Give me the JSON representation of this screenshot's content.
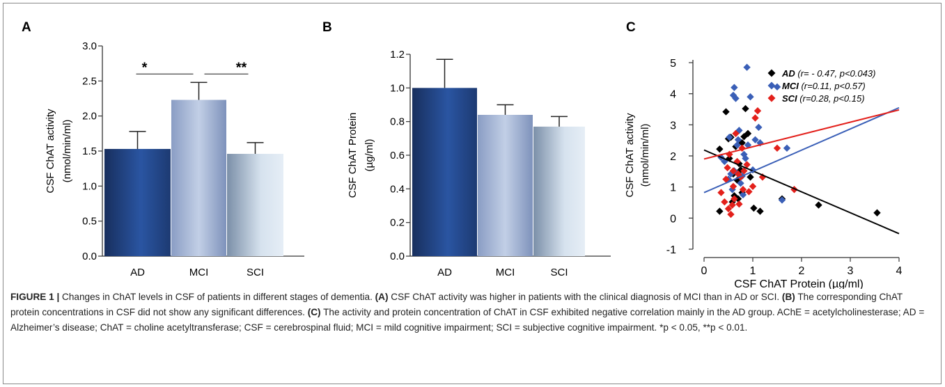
{
  "chart_data": [
    {
      "panel": "A",
      "type": "bar",
      "categories": [
        "AD",
        "MCI",
        "SCI"
      ],
      "values": [
        1.53,
        2.23,
        1.46
      ],
      "errors": [
        0.25,
        0.25,
        0.16
      ],
      "ylabel_lines": [
        "CSF ChAT activity",
        "(nmol/min/ml)"
      ],
      "ylim": [
        0,
        3.0
      ],
      "yticks": [
        "0.0",
        "0.5",
        "1.0",
        "1.5",
        "2.0",
        "2.5",
        "3.0"
      ],
      "significance": [
        {
          "from": "AD",
          "to": "MCI",
          "label": "*"
        },
        {
          "from": "MCI",
          "to": "SCI",
          "label": "**"
        }
      ],
      "colors": {
        "dark": "#1d3a72",
        "mid": "#2c5aa8",
        "light": "#a9bcdc",
        "lightest": "#dce6f0"
      }
    },
    {
      "panel": "B",
      "type": "bar",
      "categories": [
        "AD",
        "MCI",
        "SCI"
      ],
      "values": [
        1.0,
        0.84,
        0.77
      ],
      "errors": [
        0.17,
        0.06,
        0.06
      ],
      "ylabel_lines": [
        "CSF ChAT Protein",
        "(µg/ml)"
      ],
      "ylim": [
        0,
        1.2
      ],
      "yticks": [
        "0.0",
        "0.2",
        "0.4",
        "0.6",
        "0.8",
        "1.0",
        "1.2"
      ]
    },
    {
      "panel": "C",
      "type": "scatter",
      "xlabel": "CSF ChAT Protein  (µg/ml)",
      "ylabel_lines": [
        "CSF ChAT activity",
        "(nmol/min/ml)"
      ],
      "xlim": [
        0,
        4
      ],
      "ylim": [
        -1,
        5
      ],
      "xticks": [
        "0",
        "1",
        "2",
        "3",
        "4"
      ],
      "yticks": [
        "-1",
        "0",
        "1",
        "2",
        "3",
        "4",
        "5"
      ],
      "series": [
        {
          "name": "AD",
          "legend_stats": "(r= - 0.47, p<0.043)",
          "color": "#000000",
          "points": [
            [
              0.32,
              0.22
            ],
            [
              0.32,
              2.22
            ],
            [
              0.45,
              3.42
            ],
            [
              0.5,
              2.55
            ],
            [
              0.52,
              1.92
            ],
            [
              0.55,
              2.6
            ],
            [
              0.58,
              0.52
            ],
            [
              0.6,
              1.42
            ],
            [
              0.62,
              0.72
            ],
            [
              0.65,
              2.3
            ],
            [
              0.68,
              1.22
            ],
            [
              0.7,
              0.62
            ],
            [
              0.72,
              1.75
            ],
            [
              0.75,
              1.55
            ],
            [
              0.78,
              0.82
            ],
            [
              0.78,
              2.42
            ],
            [
              0.82,
              2.62
            ],
            [
              0.85,
              3.52
            ],
            [
              0.9,
              2.72
            ],
            [
              0.95,
              1.32
            ],
            [
              1.02,
              0.32
            ],
            [
              1.15,
              0.22
            ],
            [
              1.6,
              0.62
            ],
            [
              2.35,
              0.42
            ],
            [
              3.55,
              0.17
            ]
          ],
          "fit": [
            [
              0,
              2.19
            ],
            [
              4,
              -0.5
            ]
          ]
        },
        {
          "name": "MCI",
          "legend_stats": "(r=0.11, p<0.57)",
          "color": "#3a5fb7",
          "points": [
            [
              0.35,
              1.95
            ],
            [
              0.42,
              1.82
            ],
            [
              0.5,
              1.25
            ],
            [
              0.52,
              2.6
            ],
            [
              0.55,
              1.42
            ],
            [
              0.58,
              0.92
            ],
            [
              0.6,
              3.95
            ],
            [
              0.62,
              4.2
            ],
            [
              0.62,
              1.52
            ],
            [
              0.65,
              3.85
            ],
            [
              0.68,
              2.35
            ],
            [
              0.7,
              2.52
            ],
            [
              0.72,
              2.82
            ],
            [
              0.75,
              1.12
            ],
            [
              0.78,
              1.35
            ],
            [
              0.8,
              0.75
            ],
            [
              0.82,
              2.05
            ],
            [
              0.85,
              1.92
            ],
            [
              0.88,
              4.85
            ],
            [
              0.9,
              2.35
            ],
            [
              0.95,
              3.9
            ],
            [
              1.0,
              1.55
            ],
            [
              1.05,
              2.52
            ],
            [
              1.12,
              2.92
            ],
            [
              1.15,
              2.42
            ],
            [
              1.5,
              4.22
            ],
            [
              1.6,
              0.58
            ],
            [
              1.7,
              2.25
            ]
          ],
          "fit": [
            [
              0,
              0.82
            ],
            [
              4,
              3.55
            ]
          ]
        },
        {
          "name": "SCI",
          "legend_stats": "(r=0.28, p<0.15)",
          "color": "#e3201b",
          "points": [
            [
              0.35,
              0.82
            ],
            [
              0.42,
              0.52
            ],
            [
              0.45,
              1.25
            ],
            [
              0.48,
              1.62
            ],
            [
              0.5,
              0.3
            ],
            [
              0.52,
              2.05
            ],
            [
              0.55,
              0.12
            ],
            [
              0.58,
              0.42
            ],
            [
              0.6,
              1.02
            ],
            [
              0.6,
              1.52
            ],
            [
              0.62,
              0.62
            ],
            [
              0.65,
              2.72
            ],
            [
              0.68,
              1.82
            ],
            [
              0.7,
              1.42
            ],
            [
              0.72,
              0.45
            ],
            [
              0.75,
              1.32
            ],
            [
              0.78,
              2.25
            ],
            [
              0.8,
              0.92
            ],
            [
              0.82,
              1.52
            ],
            [
              0.88,
              1.72
            ],
            [
              0.92,
              0.85
            ],
            [
              1.0,
              1.02
            ],
            [
              1.05,
              3.22
            ],
            [
              1.1,
              3.45
            ],
            [
              1.2,
              1.32
            ],
            [
              1.5,
              2.25
            ],
            [
              1.85,
              0.92
            ]
          ],
          "fit": [
            [
              0,
              1.9
            ],
            [
              4,
              3.48
            ]
          ]
        }
      ]
    }
  ],
  "panel_letters": [
    "A",
    "B",
    "C"
  ],
  "caption": {
    "fig_label": "FIGURE 1 |",
    "text_1": " Changes in ChAT levels in CSF of patients in different stages of dementia. ",
    "ref_a": "(A)",
    "text_2": " CSF ChAT activity was higher in patients with the clinical diagnosis of MCI than in AD or SCI. ",
    "ref_b": "(B)",
    "text_3": " The corresponding ChAT protein concentrations in CSF did not show any significant differences. ",
    "ref_c": "(C)",
    "text_4": " The activity and protein concentration of ChAT in CSF exhibited negative correlation mainly in the AD group. AChE = acetylcholinesterase; AD = Alzheimer’s disease; ChAT = choline acetyltransferase; CSF = cerebrospinal fluid; MCI = mild cognitive impairment; SCI = subjective cognitive impairment. ",
    "sig_1": "*p < 0.05, ",
    "sig_2": "**p < 0.01."
  }
}
